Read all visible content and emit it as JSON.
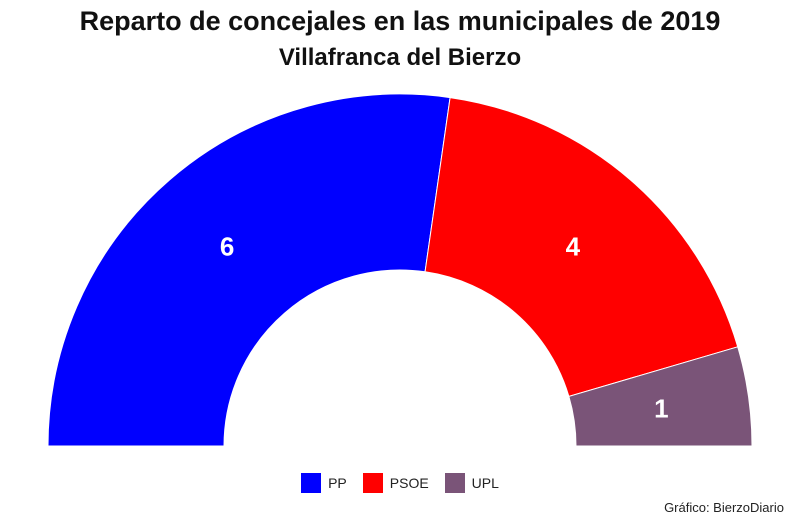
{
  "title": "Reparto de concejales en las municipales de 2019",
  "subtitle": "Villafranca del Bierzo",
  "source": "Gráfico: BierzoDiario",
  "chart_data": {
    "type": "pie",
    "variant": "semicircle-donut",
    "categories": [
      "PP",
      "PSOE",
      "UPL"
    ],
    "values": [
      6,
      4,
      1
    ],
    "colors": [
      "#0000ff",
      "#ff0000",
      "#7a5478"
    ],
    "legend": "bottom-center",
    "data_labels": true
  }
}
